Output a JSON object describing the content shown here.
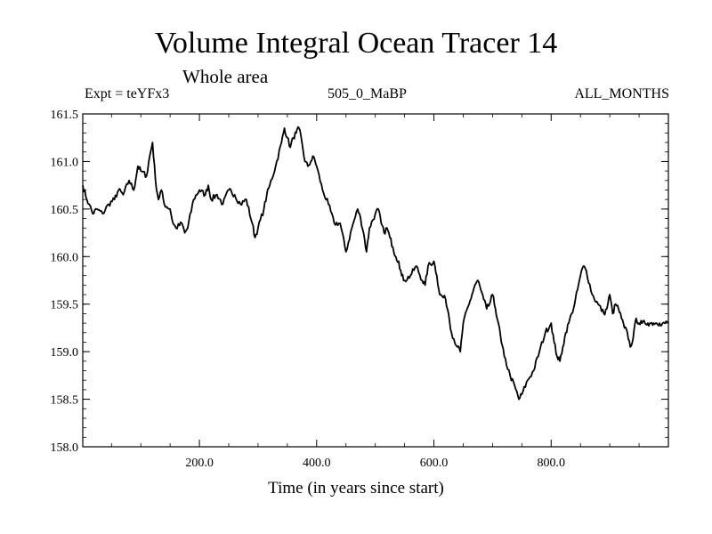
{
  "chart_data": {
    "type": "line",
    "title": "Volume Integral Ocean Tracer 14",
    "subtitle": "Whole area",
    "annotations": {
      "left": "Expt = teYFx3",
      "center": "505_0_MaBP",
      "right": "ALL_MONTHS"
    },
    "xlabel": "Time (in years since start)",
    "ylabel": "",
    "xlim": [
      1,
      1000
    ],
    "ylim": [
      158.0,
      161.5
    ],
    "xticks": [
      200,
      400,
      600,
      800
    ],
    "xtick_labels": [
      "200.0",
      "400.0",
      "600.0",
      "800.0"
    ],
    "yticks": [
      158.0,
      158.5,
      159.0,
      159.5,
      160.0,
      160.5,
      161.0,
      161.5
    ],
    "ytick_labels": [
      "158.0",
      "158.5",
      "159.0",
      "159.5",
      "160.0",
      "160.5",
      "161.0",
      "161.5"
    ],
    "series": [
      {
        "name": "Tracer 14",
        "color": "#000000",
        "x": [
          1,
          8,
          12,
          18,
          25,
          35,
          45,
          55,
          62,
          70,
          80,
          88,
          95,
          100,
          110,
          115,
          120,
          125,
          130,
          135,
          140,
          150,
          155,
          160,
          170,
          175,
          180,
          190,
          200,
          210,
          215,
          220,
          230,
          240,
          250,
          260,
          270,
          280,
          290,
          295,
          300,
          310,
          315,
          320,
          330,
          340,
          345,
          350,
          355,
          360,
          365,
          370,
          375,
          380,
          385,
          390,
          395,
          400,
          410,
          420,
          430,
          440,
          450,
          460,
          470,
          475,
          480,
          485,
          490,
          500,
          505,
          510,
          515,
          520,
          525,
          530,
          535,
          540,
          545,
          550,
          560,
          570,
          580,
          585,
          590,
          600,
          605,
          610,
          620,
          625,
          630,
          640,
          645,
          650,
          660,
          665,
          670,
          675,
          680,
          685,
          690,
          695,
          700,
          705,
          710,
          715,
          720,
          730,
          740,
          745,
          750,
          760,
          770,
          780,
          790,
          800,
          805,
          810,
          815,
          820,
          825,
          830,
          835,
          840,
          845,
          850,
          855,
          860,
          870,
          880,
          890,
          895,
          900,
          905,
          910,
          915,
          920,
          925,
          930,
          935,
          940,
          945,
          950,
          955,
          960,
          965,
          970,
          975,
          980,
          985,
          990,
          1000
        ],
        "values": [
          160.75,
          160.6,
          160.55,
          160.45,
          160.5,
          160.45,
          160.55,
          160.6,
          160.7,
          160.65,
          160.8,
          160.7,
          160.95,
          160.9,
          160.85,
          161.05,
          161.2,
          160.8,
          160.6,
          160.7,
          160.55,
          160.5,
          160.35,
          160.3,
          160.35,
          160.25,
          160.3,
          160.6,
          160.7,
          160.65,
          160.75,
          160.6,
          160.65,
          160.55,
          160.7,
          160.65,
          160.55,
          160.6,
          160.35,
          160.2,
          160.3,
          160.5,
          160.65,
          160.75,
          160.95,
          161.2,
          161.35,
          161.25,
          161.15,
          161.25,
          161.3,
          161.35,
          161.2,
          161.0,
          160.95,
          161.0,
          161.05,
          160.95,
          160.7,
          160.55,
          160.35,
          160.35,
          160.05,
          160.3,
          160.5,
          160.4,
          160.25,
          160.05,
          160.3,
          160.45,
          160.5,
          160.35,
          160.25,
          160.3,
          160.2,
          160.1,
          160.0,
          159.95,
          159.8,
          159.75,
          159.8,
          159.9,
          159.75,
          159.7,
          159.9,
          159.95,
          159.8,
          159.6,
          159.55,
          159.4,
          159.2,
          159.05,
          159.0,
          159.3,
          159.5,
          159.6,
          159.7,
          159.75,
          159.65,
          159.55,
          159.45,
          159.5,
          159.6,
          159.45,
          159.3,
          159.1,
          158.95,
          158.75,
          158.6,
          158.5,
          158.55,
          158.7,
          158.8,
          159.0,
          159.2,
          159.3,
          159.1,
          158.95,
          158.9,
          159.05,
          159.2,
          159.3,
          159.4,
          159.5,
          159.65,
          159.8,
          159.9,
          159.85,
          159.6,
          159.5,
          159.4,
          159.45,
          159.6,
          159.4,
          159.5,
          159.45,
          159.35,
          159.25,
          159.2,
          159.05,
          159.15,
          159.35,
          159.3,
          159.3,
          159.3,
          159.3,
          159.3,
          159.3,
          159.3,
          159.3,
          159.3,
          159.3
        ]
      }
    ]
  }
}
